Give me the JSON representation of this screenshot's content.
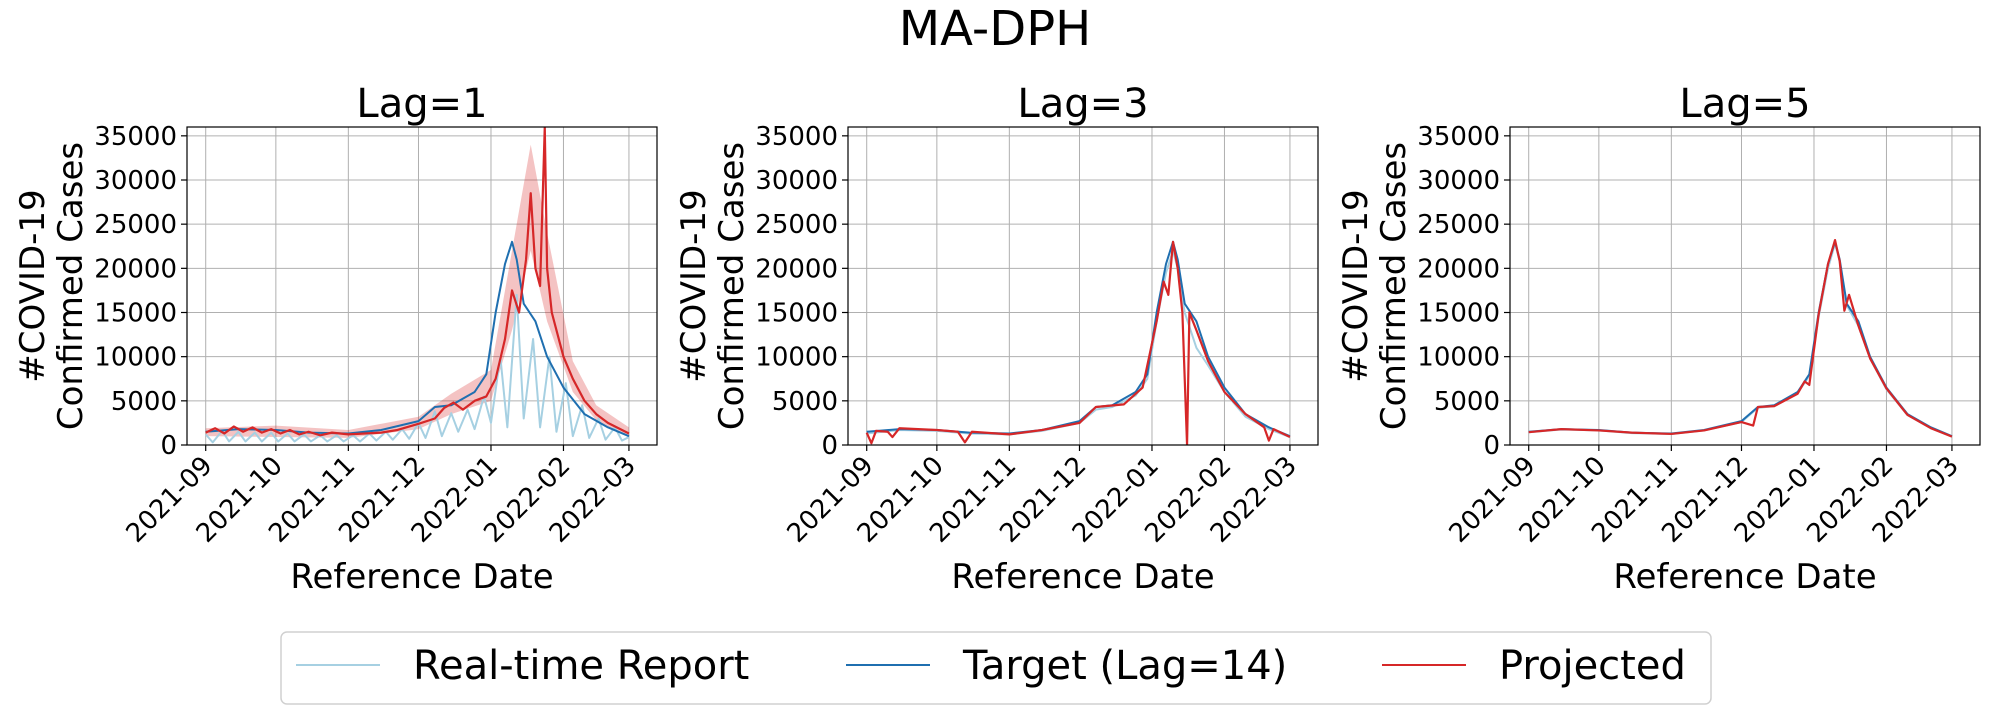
{
  "figure": {
    "suptitle": "MA-DPH",
    "legend": {
      "placement": "bottom-center",
      "entries": [
        {
          "label": "Real-time Report",
          "color": "#a6d0e2"
        },
        {
          "label": "Target (Lag=14)",
          "color": "#1f6fb0"
        },
        {
          "label": "Projected",
          "color": "#d62728"
        }
      ]
    }
  },
  "chart_data": [
    {
      "type": "line",
      "title": "Lag=1",
      "xlabel": "Reference Date",
      "ylabel_lines": [
        "#COVID-19",
        "Confirmed Cases"
      ],
      "ylim": [
        0,
        36000
      ],
      "yticks": [
        0,
        5000,
        10000,
        15000,
        20000,
        25000,
        30000,
        35000
      ],
      "xlim": [
        "2021-08-24",
        "2022-03-13"
      ],
      "xticks": [
        "2021-09",
        "2021-10",
        "2021-11",
        "2021-12",
        "2022-01",
        "2022-02",
        "2022-03"
      ],
      "grid": true,
      "target": [
        [
          "2021-09-01",
          1500
        ],
        [
          "2021-09-15",
          1800
        ],
        [
          "2021-10-01",
          1700
        ],
        [
          "2021-10-15",
          1400
        ],
        [
          "2021-11-01",
          1300
        ],
        [
          "2021-11-15",
          1700
        ],
        [
          "2021-12-01",
          2700
        ],
        [
          "2021-12-08",
          4300
        ],
        [
          "2021-12-15",
          4500
        ],
        [
          "2021-12-25",
          6000
        ],
        [
          "2021-12-30",
          8000
        ],
        [
          "2022-01-03",
          15000
        ],
        [
          "2022-01-07",
          20500
        ],
        [
          "2022-01-10",
          23000
        ],
        [
          "2022-01-12",
          21000
        ],
        [
          "2022-01-15",
          16000
        ],
        [
          "2022-01-20",
          14000
        ],
        [
          "2022-01-25",
          10000
        ],
        [
          "2022-02-01",
          6500
        ],
        [
          "2022-02-10",
          3500
        ],
        [
          "2022-02-20",
          2000
        ],
        [
          "2022-03-01",
          1000
        ]
      ],
      "realtime": [
        [
          "2021-09-01",
          1200
        ],
        [
          "2021-09-04",
          300
        ],
        [
          "2021-09-08",
          1600
        ],
        [
          "2021-09-11",
          400
        ],
        [
          "2021-09-15",
          1500
        ],
        [
          "2021-09-18",
          400
        ],
        [
          "2021-09-22",
          1400
        ],
        [
          "2021-09-25",
          400
        ],
        [
          "2021-09-29",
          1400
        ],
        [
          "2021-10-02",
          400
        ],
        [
          "2021-10-06",
          1300
        ],
        [
          "2021-10-09",
          400
        ],
        [
          "2021-10-13",
          1200
        ],
        [
          "2021-10-16",
          400
        ],
        [
          "2021-10-20",
          1100
        ],
        [
          "2021-10-23",
          400
        ],
        [
          "2021-10-27",
          1100
        ],
        [
          "2021-10-30",
          400
        ],
        [
          "2021-11-03",
          1100
        ],
        [
          "2021-11-06",
          400
        ],
        [
          "2021-11-10",
          1300
        ],
        [
          "2021-11-13",
          500
        ],
        [
          "2021-11-17",
          1500
        ],
        [
          "2021-11-20",
          600
        ],
        [
          "2021-11-24",
          1800
        ],
        [
          "2021-11-27",
          700
        ],
        [
          "2021-12-01",
          2500
        ],
        [
          "2021-12-04",
          800
        ],
        [
          "2021-12-08",
          3800
        ],
        [
          "2021-12-11",
          1000
        ],
        [
          "2021-12-15",
          3600
        ],
        [
          "2021-12-18",
          1500
        ],
        [
          "2021-12-22",
          4000
        ],
        [
          "2021-12-25",
          1800
        ],
        [
          "2021-12-29",
          5500
        ],
        [
          "2022-01-01",
          2500
        ],
        [
          "2022-01-05",
          10000
        ],
        [
          "2022-01-08",
          2000
        ],
        [
          "2022-01-12",
          17000
        ],
        [
          "2022-01-15",
          3000
        ],
        [
          "2022-01-19",
          12000
        ],
        [
          "2022-01-22",
          2000
        ],
        [
          "2022-01-26",
          10000
        ],
        [
          "2022-01-29",
          1500
        ],
        [
          "2022-02-02",
          7000
        ],
        [
          "2022-02-05",
          1000
        ],
        [
          "2022-02-09",
          4500
        ],
        [
          "2022-02-12",
          800
        ],
        [
          "2022-02-16",
          3000
        ],
        [
          "2022-02-19",
          600
        ],
        [
          "2022-02-23",
          2000
        ],
        [
          "2022-02-26",
          500
        ],
        [
          "2022-03-01",
          900
        ]
      ],
      "projected": [
        [
          "2021-09-01",
          1400
        ],
        [
          "2021-09-05",
          1900
        ],
        [
          "2021-09-09",
          1300
        ],
        [
          "2021-09-13",
          2100
        ],
        [
          "2021-09-17",
          1500
        ],
        [
          "2021-09-21",
          2000
        ],
        [
          "2021-09-25",
          1400
        ],
        [
          "2021-09-29",
          1800
        ],
        [
          "2021-10-03",
          1300
        ],
        [
          "2021-10-07",
          1700
        ],
        [
          "2021-10-11",
          1200
        ],
        [
          "2021-10-15",
          1500
        ],
        [
          "2021-10-20",
          1100
        ],
        [
          "2021-10-25",
          1400
        ],
        [
          "2021-11-01",
          1200
        ],
        [
          "2021-11-08",
          1300
        ],
        [
          "2021-11-15",
          1400
        ],
        [
          "2021-11-22",
          1700
        ],
        [
          "2021-12-01",
          2400
        ],
        [
          "2021-12-08",
          3000
        ],
        [
          "2021-12-12",
          4200
        ],
        [
          "2021-12-16",
          4800
        ],
        [
          "2021-12-20",
          4000
        ],
        [
          "2021-12-25",
          5000
        ],
        [
          "2021-12-30",
          5500
        ],
        [
          "2022-01-03",
          7500
        ],
        [
          "2022-01-07",
          12000
        ],
        [
          "2022-01-10",
          17500
        ],
        [
          "2022-01-13",
          15000
        ],
        [
          "2022-01-16",
          21000
        ],
        [
          "2022-01-18",
          28500
        ],
        [
          "2022-01-20",
          20000
        ],
        [
          "2022-01-22",
          18000
        ],
        [
          "2022-01-24",
          36000
        ],
        [
          "2022-01-25",
          20000
        ],
        [
          "2022-01-27",
          15000
        ],
        [
          "2022-02-01",
          10000
        ],
        [
          "2022-02-05",
          7500
        ],
        [
          "2022-02-10",
          5000
        ],
        [
          "2022-02-15",
          3500
        ],
        [
          "2022-02-20",
          2500
        ],
        [
          "2022-03-01",
          1300
        ]
      ],
      "projected_band": [
        [
          "2021-09-01",
          1000,
          1900
        ],
        [
          "2021-10-01",
          900,
          2200
        ],
        [
          "2021-11-01",
          800,
          1700
        ],
        [
          "2021-12-01",
          1800,
          3200
        ],
        [
          "2021-12-15",
          3500,
          5800
        ],
        [
          "2022-01-01",
          5000,
          8500
        ],
        [
          "2022-01-10",
          13000,
          22000
        ],
        [
          "2022-01-18",
          22000,
          34000
        ],
        [
          "2022-01-25",
          14000,
          24000
        ],
        [
          "2022-02-05",
          6000,
          9500
        ],
        [
          "2022-02-15",
          2800,
          4500
        ],
        [
          "2022-03-01",
          900,
          2000
        ]
      ]
    },
    {
      "type": "line",
      "title": "Lag=3",
      "xlabel": "Reference Date",
      "ylabel_lines": [
        "#COVID-19",
        "Confirmed Cases"
      ],
      "ylim": [
        0,
        36000
      ],
      "yticks": [
        0,
        5000,
        10000,
        15000,
        20000,
        25000,
        30000,
        35000
      ],
      "xlim": [
        "2021-08-24",
        "2022-03-13"
      ],
      "xticks": [
        "2021-09",
        "2021-10",
        "2021-11",
        "2021-12",
        "2022-01",
        "2022-02",
        "2022-03"
      ],
      "grid": true,
      "target": [
        [
          "2021-09-01",
          1500
        ],
        [
          "2021-09-15",
          1800
        ],
        [
          "2021-10-01",
          1700
        ],
        [
          "2021-10-15",
          1400
        ],
        [
          "2021-11-01",
          1300
        ],
        [
          "2021-11-15",
          1700
        ],
        [
          "2021-12-01",
          2700
        ],
        [
          "2021-12-08",
          4300
        ],
        [
          "2021-12-15",
          4500
        ],
        [
          "2021-12-25",
          6000
        ],
        [
          "2021-12-30",
          8000
        ],
        [
          "2022-01-03",
          15000
        ],
        [
          "2022-01-07",
          20500
        ],
        [
          "2022-01-10",
          23000
        ],
        [
          "2022-01-12",
          21000
        ],
        [
          "2022-01-15",
          16000
        ],
        [
          "2022-01-20",
          14000
        ],
        [
          "2022-01-25",
          10000
        ],
        [
          "2022-02-01",
          6500
        ],
        [
          "2022-02-10",
          3500
        ],
        [
          "2022-02-20",
          2000
        ],
        [
          "2022-03-01",
          1000
        ]
      ],
      "realtime": [
        [
          "2021-09-01",
          1300
        ],
        [
          "2021-09-15",
          1700
        ],
        [
          "2021-10-01",
          1600
        ],
        [
          "2021-10-15",
          1300
        ],
        [
          "2021-11-01",
          1200
        ],
        [
          "2021-11-15",
          1600
        ],
        [
          "2021-12-01",
          2500
        ],
        [
          "2021-12-08",
          4000
        ],
        [
          "2021-12-15",
          4300
        ],
        [
          "2021-12-25",
          5600
        ],
        [
          "2021-12-30",
          7500
        ],
        [
          "2022-01-03",
          14000
        ],
        [
          "2022-01-07",
          19500
        ],
        [
          "2022-01-10",
          22000
        ],
        [
          "2022-01-12",
          20000
        ],
        [
          "2022-01-15",
          15000
        ],
        [
          "2022-01-20",
          11000
        ],
        [
          "2022-01-25",
          9000
        ],
        [
          "2022-02-01",
          6000
        ],
        [
          "2022-02-10",
          3200
        ],
        [
          "2022-02-20",
          1800
        ],
        [
          "2022-03-01",
          900
        ]
      ],
      "projected": [
        [
          "2021-09-01",
          1400
        ],
        [
          "2021-09-03",
          200
        ],
        [
          "2021-09-05",
          1600
        ],
        [
          "2021-09-10",
          1500
        ],
        [
          "2021-09-12",
          900
        ],
        [
          "2021-09-15",
          1900
        ],
        [
          "2021-10-01",
          1700
        ],
        [
          "2021-10-10",
          1500
        ],
        [
          "2021-10-13",
          300
        ],
        [
          "2021-10-16",
          1500
        ],
        [
          "2021-11-01",
          1200
        ],
        [
          "2021-11-15",
          1700
        ],
        [
          "2021-12-01",
          2500
        ],
        [
          "2021-12-08",
          4300
        ],
        [
          "2021-12-20",
          4600
        ],
        [
          "2021-12-28",
          6500
        ],
        [
          "2022-01-03",
          14000
        ],
        [
          "2022-01-06",
          18500
        ],
        [
          "2022-01-08",
          17000
        ],
        [
          "2022-01-10",
          23000
        ],
        [
          "2022-01-12",
          20000
        ],
        [
          "2022-01-14",
          15000
        ],
        [
          "2022-01-16",
          0
        ],
        [
          "2022-01-17",
          15000
        ],
        [
          "2022-01-20",
          13000
        ],
        [
          "2022-01-25",
          9500
        ],
        [
          "2022-02-01",
          6000
        ],
        [
          "2022-02-10",
          3500
        ],
        [
          "2022-02-18",
          2000
        ],
        [
          "2022-02-20",
          500
        ],
        [
          "2022-02-22",
          1800
        ],
        [
          "2022-03-01",
          900
        ]
      ]
    },
    {
      "type": "line",
      "title": "Lag=5",
      "xlabel": "Reference Date",
      "ylabel_lines": [
        "#COVID-19",
        "Confirmed Cases"
      ],
      "ylim": [
        0,
        36000
      ],
      "yticks": [
        0,
        5000,
        10000,
        15000,
        20000,
        25000,
        30000,
        35000
      ],
      "xlim": [
        "2021-08-24",
        "2022-03-13"
      ],
      "xticks": [
        "2021-09",
        "2021-10",
        "2021-11",
        "2021-12",
        "2022-01",
        "2022-02",
        "2022-03"
      ],
      "grid": true,
      "target": [
        [
          "2021-09-01",
          1500
        ],
        [
          "2021-09-15",
          1800
        ],
        [
          "2021-10-01",
          1700
        ],
        [
          "2021-10-15",
          1400
        ],
        [
          "2021-11-01",
          1300
        ],
        [
          "2021-11-15",
          1700
        ],
        [
          "2021-12-01",
          2700
        ],
        [
          "2021-12-08",
          4300
        ],
        [
          "2021-12-15",
          4500
        ],
        [
          "2021-12-25",
          6000
        ],
        [
          "2021-12-30",
          8000
        ],
        [
          "2022-01-03",
          15000
        ],
        [
          "2022-01-07",
          20500
        ],
        [
          "2022-01-10",
          23000
        ],
        [
          "2022-01-12",
          21000
        ],
        [
          "2022-01-15",
          16000
        ],
        [
          "2022-01-20",
          14000
        ],
        [
          "2022-01-25",
          10000
        ],
        [
          "2022-02-01",
          6500
        ],
        [
          "2022-02-10",
          3500
        ],
        [
          "2022-02-20",
          2000
        ],
        [
          "2022-03-01",
          1000
        ]
      ],
      "realtime": [
        [
          "2021-09-01",
          1450
        ],
        [
          "2021-09-15",
          1750
        ],
        [
          "2021-10-01",
          1650
        ],
        [
          "2021-10-15",
          1350
        ],
        [
          "2021-11-01",
          1250
        ],
        [
          "2021-11-15",
          1650
        ],
        [
          "2021-12-01",
          2600
        ],
        [
          "2021-12-08",
          4200
        ],
        [
          "2021-12-15",
          4400
        ],
        [
          "2021-12-25",
          5900
        ],
        [
          "2021-12-30",
          7800
        ],
        [
          "2022-01-03",
          14500
        ],
        [
          "2022-01-07",
          20000
        ],
        [
          "2022-01-10",
          22800
        ],
        [
          "2022-01-12",
          20800
        ],
        [
          "2022-01-15",
          15800
        ],
        [
          "2022-01-20",
          13500
        ],
        [
          "2022-01-25",
          9800
        ],
        [
          "2022-02-01",
          6300
        ],
        [
          "2022-02-10",
          3400
        ],
        [
          "2022-02-20",
          1900
        ],
        [
          "2022-03-01",
          950
        ]
      ],
      "projected": [
        [
          "2021-09-01",
          1450
        ],
        [
          "2021-09-15",
          1800
        ],
        [
          "2021-10-01",
          1650
        ],
        [
          "2021-10-15",
          1400
        ],
        [
          "2021-11-01",
          1250
        ],
        [
          "2021-11-15",
          1650
        ],
        [
          "2021-12-01",
          2600
        ],
        [
          "2021-12-06",
          2200
        ],
        [
          "2021-12-08",
          4300
        ],
        [
          "2021-12-15",
          4400
        ],
        [
          "2021-12-25",
          5800
        ],
        [
          "2021-12-28",
          7200
        ],
        [
          "2021-12-30",
          6800
        ],
        [
          "2022-01-03",
          14800
        ],
        [
          "2022-01-07",
          20500
        ],
        [
          "2022-01-10",
          23200
        ],
        [
          "2022-01-12",
          20800
        ],
        [
          "2022-01-14",
          15200
        ],
        [
          "2022-01-16",
          17000
        ],
        [
          "2022-01-20",
          13500
        ],
        [
          "2022-01-25",
          9800
        ],
        [
          "2022-02-01",
          6400
        ],
        [
          "2022-02-10",
          3400
        ],
        [
          "2022-02-20",
          1900
        ],
        [
          "2022-03-01",
          950
        ]
      ]
    }
  ]
}
